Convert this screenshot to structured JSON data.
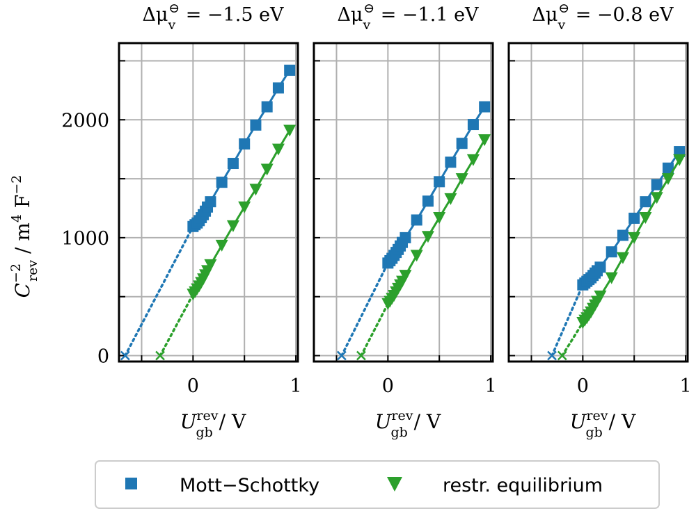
{
  "colors": {
    "mott_schottky": "#1f77b4",
    "restr_equilibrium": "#2ca02c",
    "grid": "#b0b0b0",
    "frame": "#000000"
  },
  "figure": {
    "ylabel": {
      "main": "C",
      "sup": "−2",
      "sub": "rev",
      "unit": " / m",
      "unit_sup": "4",
      "unit2": " F",
      "unit2_sup": "−2"
    },
    "xlabel": {
      "main": "U",
      "sup": "rev",
      "sub": "gb",
      "unit": " / V"
    },
    "legend": {
      "placement": "bottom-center",
      "items": [
        {
          "key": "ms",
          "label": "Mott−Schottky",
          "marker": "square-icon"
        },
        {
          "key": "re",
          "label": "restr. equilibrium",
          "marker": "triangle-down-icon"
        }
      ]
    }
  },
  "chart_data": [
    {
      "type": "line",
      "title": "Δμ_v^⊖ = −1.5 eV",
      "title_parts": {
        "delta": "Δμ",
        "sub": "v",
        "sup": "⊖",
        "value": " = −1.5 eV"
      },
      "xlim": [
        -0.72,
        1.02
      ],
      "ylim": [
        -50,
        2650
      ],
      "xticks": [
        0,
        1
      ],
      "xticks_minor": [
        -0.5,
        0.5
      ],
      "yticks": [
        0,
        1000,
        2000
      ],
      "yticks_minor": [
        500,
        1500,
        2500
      ],
      "grid": true,
      "show_ytick_labels": true,
      "series": [
        {
          "key": "ms",
          "name": "Mott−Schottky",
          "x": [
            0.0,
            0.02,
            0.04,
            0.06,
            0.08,
            0.1,
            0.12,
            0.14,
            0.17,
            0.28,
            0.39,
            0.5,
            0.61,
            0.72,
            0.83,
            0.94
          ],
          "y": [
            1095,
            1110,
            1125,
            1145,
            1170,
            1195,
            1225,
            1260,
            1305,
            1470,
            1630,
            1795,
            1955,
            2110,
            2270,
            2420
          ],
          "extrapolation": {
            "x": [
              -0.66,
              0.0
            ],
            "y": [
              0,
              1095
            ]
          },
          "intercept": {
            "x": -0.66,
            "y": 0
          }
        },
        {
          "key": "re",
          "name": "restr. equilibrium",
          "x": [
            0.0,
            0.02,
            0.04,
            0.06,
            0.08,
            0.1,
            0.12,
            0.14,
            0.17,
            0.28,
            0.39,
            0.5,
            0.61,
            0.72,
            0.83,
            0.94
          ],
          "y": [
            520,
            540,
            565,
            590,
            620,
            650,
            685,
            720,
            770,
            935,
            1100,
            1260,
            1410,
            1580,
            1750,
            1910
          ],
          "extrapolation": {
            "x": [
              -0.32,
              0.0
            ],
            "y": [
              0,
              520
            ]
          },
          "intercept": {
            "x": -0.32,
            "y": 0
          }
        }
      ]
    },
    {
      "type": "line",
      "title": "Δμ_v^⊖ = −1.1 eV",
      "title_parts": {
        "delta": "Δμ",
        "sub": "v",
        "sup": "⊖",
        "value": " = −1.1 eV"
      },
      "xlim": [
        -0.72,
        1.02
      ],
      "ylim": [
        -50,
        2650
      ],
      "xticks": [
        0,
        1
      ],
      "xticks_minor": [
        -0.5,
        0.5
      ],
      "yticks": [
        0,
        1000,
        2000
      ],
      "yticks_minor": [
        500,
        1500,
        2500
      ],
      "grid": true,
      "show_ytick_labels": false,
      "series": [
        {
          "key": "ms",
          "name": "Mott−Schottky",
          "x": [
            0.0,
            0.02,
            0.04,
            0.06,
            0.08,
            0.1,
            0.12,
            0.14,
            0.17,
            0.28,
            0.39,
            0.5,
            0.61,
            0.72,
            0.83,
            0.94
          ],
          "y": [
            785,
            805,
            825,
            850,
            875,
            900,
            930,
            960,
            1000,
            1150,
            1310,
            1475,
            1640,
            1800,
            1960,
            2110
          ],
          "extrapolation": {
            "x": [
              -0.45,
              0.0
            ],
            "y": [
              0,
              785
            ]
          },
          "intercept": {
            "x": -0.45,
            "y": 0
          }
        },
        {
          "key": "re",
          "name": "restr. equilibrium",
          "x": [
            0.0,
            0.02,
            0.04,
            0.06,
            0.08,
            0.1,
            0.12,
            0.14,
            0.17,
            0.28,
            0.39,
            0.5,
            0.61,
            0.72,
            0.83,
            0.94
          ],
          "y": [
            440,
            460,
            485,
            510,
            540,
            570,
            600,
            630,
            680,
            850,
            1010,
            1170,
            1330,
            1500,
            1660,
            1830
          ],
          "extrapolation": {
            "x": [
              -0.26,
              0.0
            ],
            "y": [
              0,
              440
            ]
          },
          "intercept": {
            "x": -0.26,
            "y": 0
          }
        }
      ]
    },
    {
      "type": "line",
      "title": "Δμ_v^⊖ = −0.8 eV",
      "title_parts": {
        "delta": "Δμ",
        "sub": "v",
        "sup": "⊖",
        "value": " = −0.8 eV"
      },
      "xlim": [
        -0.72,
        1.02
      ],
      "ylim": [
        -50,
        2650
      ],
      "xticks": [
        0,
        1
      ],
      "xticks_minor": [
        -0.5,
        0.5
      ],
      "yticks": [
        0,
        1000,
        2000
      ],
      "yticks_minor": [
        500,
        1500,
        2500
      ],
      "grid": true,
      "show_ytick_labels": false,
      "series": [
        {
          "key": "ms",
          "name": "Mott−Schottky",
          "x": [
            0.0,
            0.02,
            0.04,
            0.06,
            0.08,
            0.1,
            0.12,
            0.14,
            0.17,
            0.28,
            0.39,
            0.5,
            0.61,
            0.72,
            0.83,
            0.94
          ],
          "y": [
            600,
            615,
            630,
            645,
            660,
            680,
            700,
            720,
            750,
            880,
            1020,
            1165,
            1305,
            1450,
            1590,
            1730
          ],
          "extrapolation": {
            "x": [
              -0.3,
              0.0
            ],
            "y": [
              0,
              600
            ]
          },
          "intercept": {
            "x": -0.3,
            "y": 0
          }
        },
        {
          "key": "re",
          "name": "restr. equilibrium",
          "x": [
            0.0,
            0.02,
            0.04,
            0.06,
            0.08,
            0.1,
            0.12,
            0.14,
            0.17,
            0.28,
            0.39,
            0.5,
            0.61,
            0.72,
            0.83,
            0.94
          ],
          "y": [
            280,
            300,
            320,
            345,
            370,
            400,
            430,
            460,
            505,
            660,
            830,
            1000,
            1170,
            1340,
            1500,
            1660
          ],
          "extrapolation": {
            "x": [
              -0.2,
              0.0
            ],
            "y": [
              0,
              280
            ]
          },
          "intercept": {
            "x": -0.2,
            "y": 0
          }
        }
      ]
    }
  ]
}
